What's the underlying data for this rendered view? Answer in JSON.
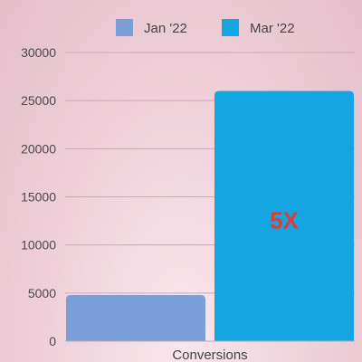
{
  "chart_data": {
    "type": "bar",
    "categories": [
      "Conversions"
    ],
    "series": [
      {
        "name": "Jan '22",
        "values": [
          4800
        ],
        "color": "#7a9fd8"
      },
      {
        "name": "Mar '22",
        "values": [
          26000
        ],
        "color": "#15a6e2"
      }
    ],
    "ylim": [
      0,
      30000
    ],
    "yticks": [
      0,
      5000,
      10000,
      15000,
      20000,
      25000,
      30000
    ],
    "grid": true,
    "legend": "top",
    "annotation": {
      "text": "5X",
      "series": "Mar '22",
      "color": "#e0393e"
    }
  }
}
